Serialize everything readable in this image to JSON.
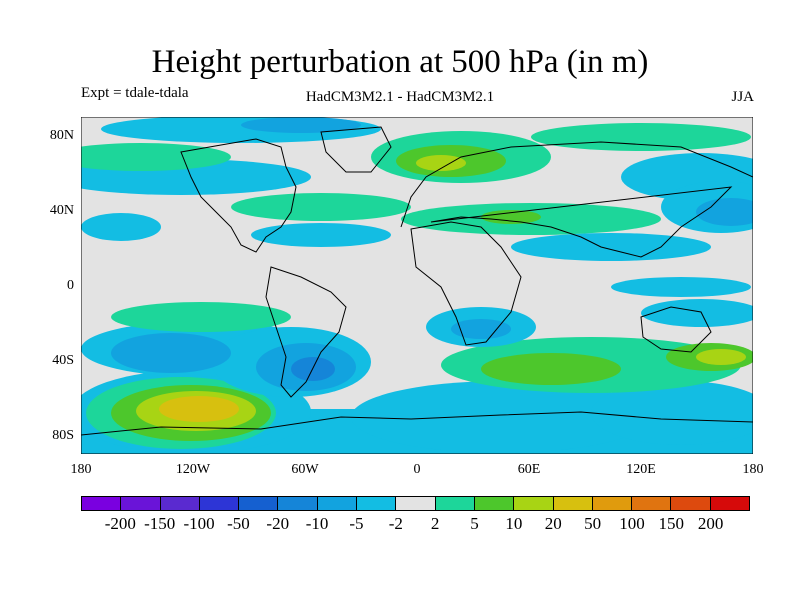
{
  "title": "Height perturbation at 500 hPa (in m)",
  "subtitle_left": "Expt = tdale-tdala",
  "subtitle_center": "HadCM3M2.1 - HadCM3M2.1",
  "subtitle_right": "JJA",
  "lat_labels": [
    "80N",
    "40N",
    "0",
    "40S",
    "80S"
  ],
  "lon_labels": [
    "180",
    "120W",
    "60W",
    "0",
    "60E",
    "120E",
    "180"
  ],
  "colorbar": {
    "labels": [
      "-200",
      "-150",
      "-100",
      "-50",
      "-20",
      "-10",
      "-5",
      "-2",
      "2",
      "5",
      "10",
      "20",
      "50",
      "100",
      "150",
      "200"
    ],
    "colors": [
      "#7a00e0",
      "#6a14d8",
      "#5a2ad0",
      "#2d35d6",
      "#1560d0",
      "#1585d8",
      "#12a3df",
      "#13bde3",
      "#e3e3e3",
      "#1dd69a",
      "#4dc72c",
      "#a8d414",
      "#d7c00f",
      "#e09b0d",
      "#e07410",
      "#dd4a0e",
      "#d60a0a"
    ]
  }
}
